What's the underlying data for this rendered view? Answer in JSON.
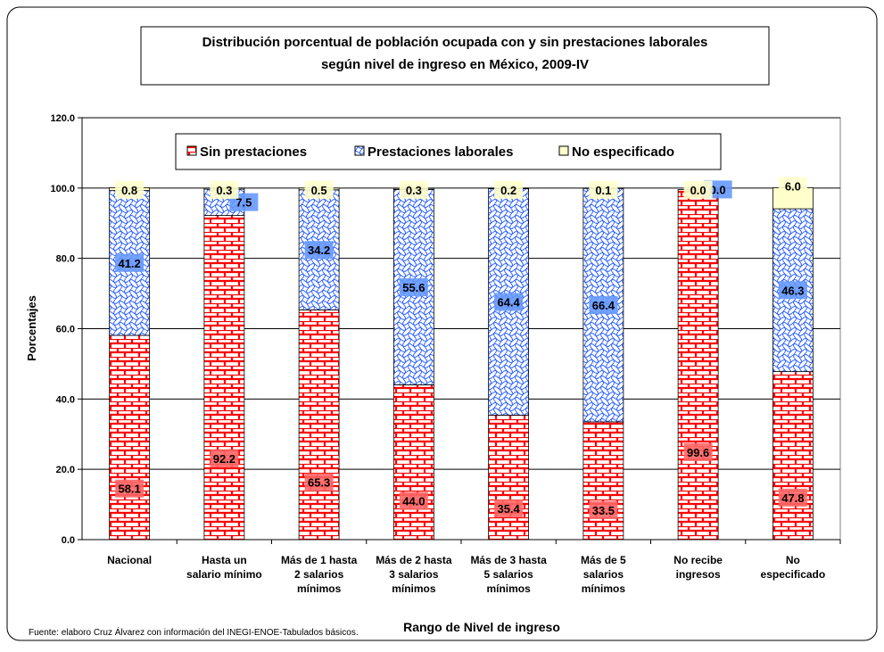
{
  "chart_data": {
    "type": "stacked_bar",
    "title": "Distribución porcentual de población ocupada con y sin prestaciones laborales",
    "subtitle": "según nivel de ingreso en México, 2009-IV",
    "y_label": "Porcentajes",
    "x_label": "Rango de Nivel de ingreso",
    "source": "Fuente: elaboro Cruz Álvarez con información del INEGI-ENOE-Tabulados básicos.",
    "categories": [
      "Nacional",
      "Hasta un\nsalario mínimo",
      "Más de 1 hasta\n2 salarios\nmínimos",
      "Más de 2 hasta\n3 salarios\nmínimos",
      "Más de 3 hasta\n5 salarios\nmínimos",
      "Más de 5\nsalarios\nmínimos",
      "No recibe\ningresos",
      "No\nespecificado"
    ],
    "series": [
      {
        "name": "Sin prestaciones",
        "color": "#ff0000",
        "values": [
          58.1,
          92.2,
          65.3,
          44.0,
          35.4,
          33.5,
          99.6,
          47.8
        ],
        "value_labels": [
          "58.1",
          "92.2",
          "65.3",
          "44.0",
          "35.4",
          "33.5",
          "99.6",
          "47.8"
        ]
      },
      {
        "name": "Prestaciones laborales",
        "color": "#3366ff",
        "values": [
          41.2,
          7.5,
          34.2,
          55.6,
          64.4,
          66.4,
          0.0,
          46.3
        ],
        "value_labels": [
          "41.2",
          "7.5",
          "34.2",
          "55.6",
          "64.4",
          "66.4",
          "0.0",
          "46.3"
        ]
      },
      {
        "name": "No especificado",
        "color": "#ffffcc",
        "values": [
          0.8,
          0.3,
          0.5,
          0.3,
          0.2,
          0.1,
          0.0,
          6.0
        ],
        "value_labels": [
          "0.8",
          "0.3",
          "0.5",
          "0.3",
          "0.2",
          "0.1",
          "0.0",
          "6.0"
        ]
      }
    ],
    "ylim": [
      0,
      120
    ],
    "yticks": [
      {
        "value": 0,
        "label": "0.0"
      },
      {
        "value": 20,
        "label": "20.0"
      },
      {
        "value": 40,
        "label": "40.0"
      },
      {
        "value": 60,
        "label": "60.0"
      },
      {
        "value": 80,
        "label": "80.0"
      },
      {
        "value": 100,
        "label": "100.0"
      },
      {
        "value": 120,
        "label": "120.0"
      }
    ],
    "grid": true,
    "legend": "top"
  }
}
